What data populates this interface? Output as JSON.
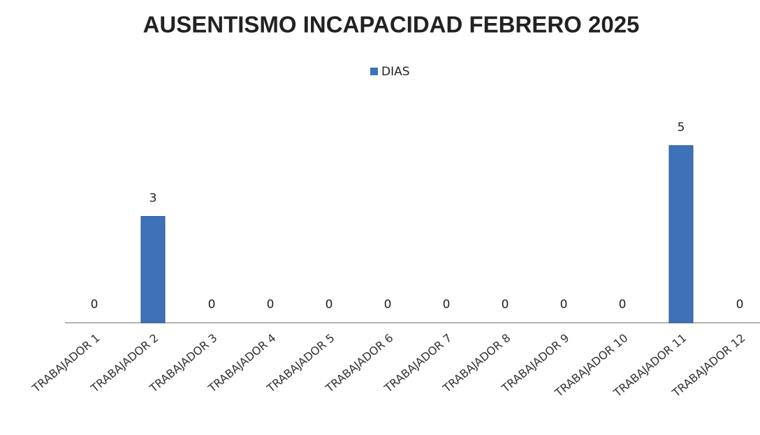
{
  "chart_data": {
    "type": "bar",
    "title": "AUSENTISMO INCAPACIDAD FEBRERO 2025",
    "categories": [
      "TRABAJADOR 1",
      "TRABAJADOR 2",
      "TRABAJADOR 3",
      "TRABAJADOR 4",
      "TRABAJADOR 5",
      "TRABAJADOR 6",
      "TRABAJADOR 7",
      "TRABAJADOR 8",
      "TRABAJADOR 9",
      "TRABAJADOR 10",
      "TRABAJADOR 11",
      "TRABAJADOR 12"
    ],
    "series": [
      {
        "name": "DIAS",
        "color": "#3d72b8",
        "values": [
          0,
          3,
          0,
          0,
          0,
          0,
          0,
          0,
          0,
          0,
          5,
          0
        ]
      }
    ],
    "ylim": [
      0,
      6
    ],
    "legend": "top"
  }
}
